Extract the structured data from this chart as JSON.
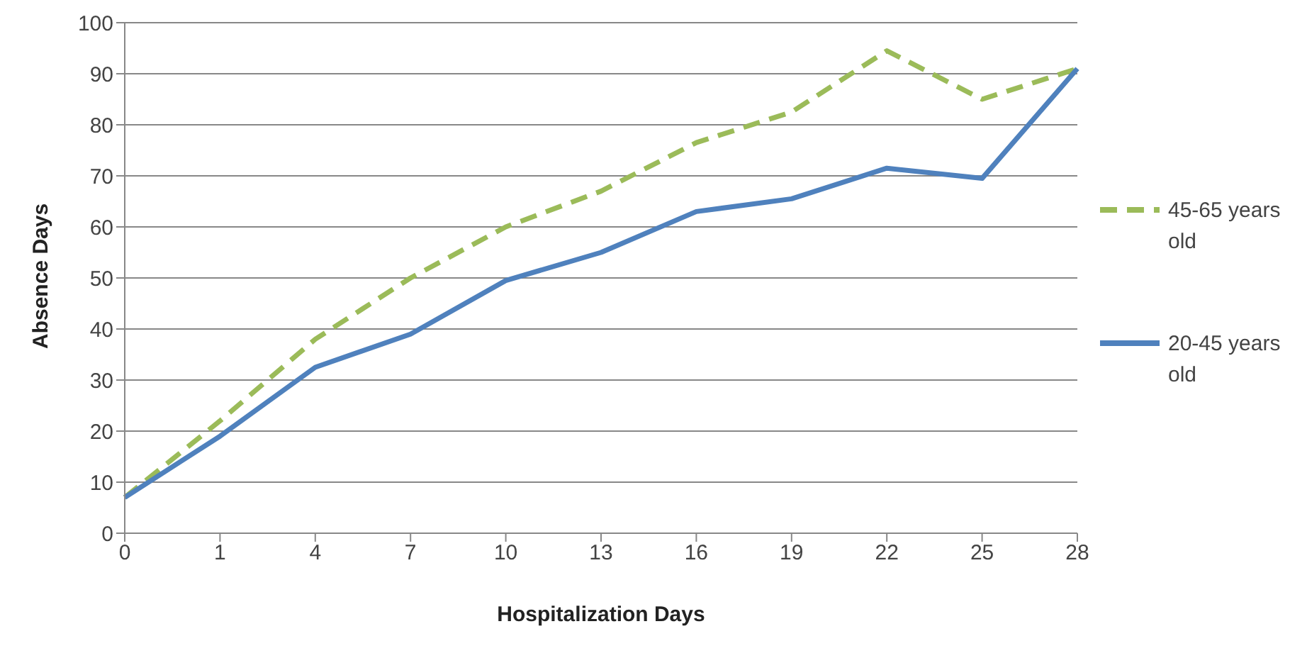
{
  "chart_data": {
    "type": "line",
    "xlabel": "Hospitalization Days",
    "ylabel": "Absence Days",
    "categories": [
      "0",
      "1",
      "4",
      "7",
      "10",
      "13",
      "16",
      "19",
      "22",
      "25",
      "28"
    ],
    "series": [
      {
        "name": "45-65 years old",
        "color": "#9bbb59",
        "line_style": "dashed",
        "values": [
          7,
          22,
          38,
          50,
          60,
          67,
          76.5,
          82.5,
          94.5,
          85,
          91
        ]
      },
      {
        "name": "20-45 years old",
        "color": "#4f81bd",
        "line_style": "solid",
        "values": [
          7,
          19,
          32.5,
          39,
          49.5,
          55,
          63,
          65.5,
          71.5,
          69.5,
          91
        ]
      }
    ],
    "ylim": [
      0,
      100
    ],
    "yticks": [
      0,
      10,
      20,
      30,
      40,
      50,
      60,
      70,
      80,
      90,
      100
    ],
    "grid": "y",
    "legend": "right",
    "marker": "none"
  }
}
